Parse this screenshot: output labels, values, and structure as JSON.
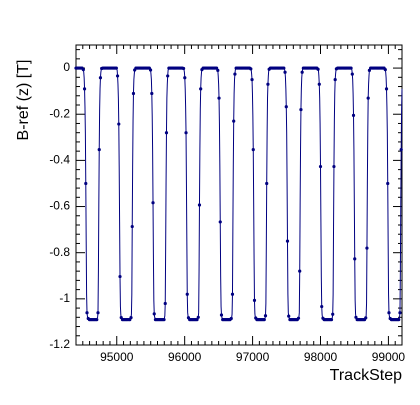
{
  "chart_data": {
    "type": "line",
    "title": "",
    "xlabel": "TrackStep",
    "ylabel": "B-ref (z)  [T]",
    "xlim": [
      94400,
      99200
    ],
    "ylim": [
      -1.2,
      0.1
    ],
    "x_ticks": [
      95000,
      96000,
      97000,
      98000,
      99000
    ],
    "x_tick_labels": [
      "95000",
      "96000",
      "97000",
      "98000",
      "99000"
    ],
    "y_ticks": [
      0,
      -0.2,
      -0.4,
      -0.6,
      -0.8,
      -1,
      -1.2
    ],
    "y_tick_labels": [
      "0",
      "-0.2",
      "-0.4",
      "-0.6",
      "-0.8",
      "-1",
      "-1.2"
    ],
    "grid": false,
    "legend": "none",
    "marker": "dot",
    "series": [
      {
        "pulse_period": 494,
        "pulse_starts": [
          94500,
          94994,
          95488,
          95982,
          96476,
          96970,
          97464,
          97958,
          98452,
          98946
        ],
        "plateau_value": 0,
        "trough_value": -1.09,
        "color": "#000080"
      }
    ]
  }
}
